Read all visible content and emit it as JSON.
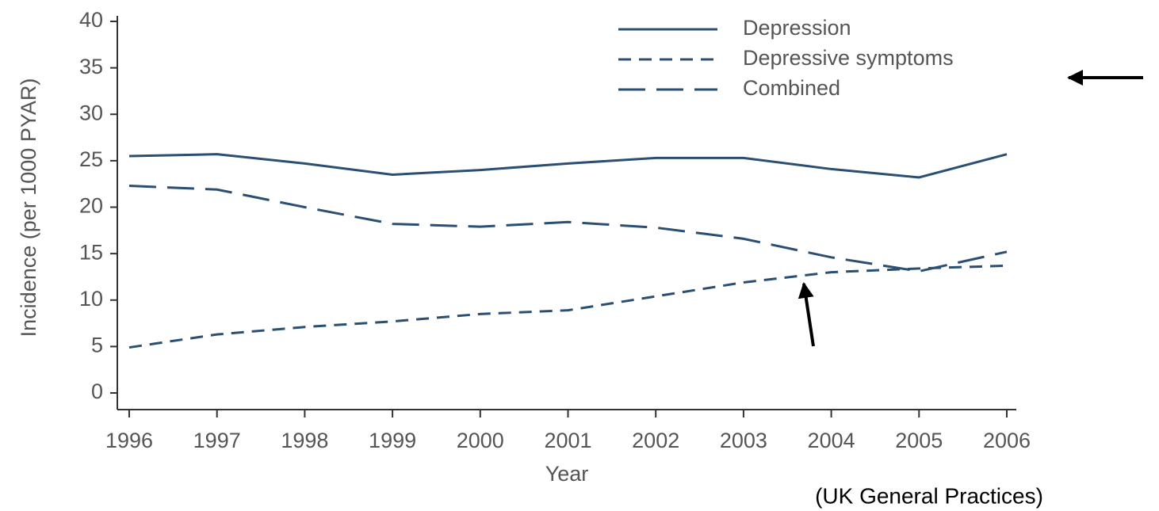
{
  "chart_data": {
    "type": "line",
    "x": [
      1996,
      1997,
      1998,
      1999,
      2000,
      2001,
      2002,
      2003,
      2004,
      2005,
      2006
    ],
    "xlim": [
      1996,
      2006
    ],
    "xticks": [
      1996,
      1997,
      1998,
      1999,
      2000,
      2001,
      2002,
      2003,
      2004,
      2005,
      2006
    ],
    "ylim": [
      0,
      40
    ],
    "yticks": [
      0,
      5,
      10,
      15,
      20,
      25,
      30,
      35,
      40
    ],
    "xlabel": "Year",
    "ylabel": "Incidence (per 1000 PYAR)",
    "annotation": "(UK General Practices)",
    "legend": "upper right",
    "series": [
      {
        "name": "Depression",
        "color": "#2b4f72",
        "dash": "solid",
        "values": [
          25.5,
          25.7,
          24.7,
          23.5,
          24.0,
          24.7,
          25.3,
          25.3,
          24.1,
          23.2,
          25.7
        ]
      },
      {
        "name": "Depressive symptoms",
        "color": "#2b4f72",
        "dash": "short",
        "values": [
          4.9,
          6.3,
          7.1,
          7.7,
          8.5,
          8.9,
          10.4,
          11.9,
          13.0,
          13.4,
          13.7
        ]
      },
      {
        "name": "Combined",
        "color": "#2b4f72",
        "dash": "long",
        "values": [
          22.3,
          21.9,
          20.0,
          18.2,
          17.9,
          18.4,
          17.8,
          16.6,
          14.6,
          13.1,
          15.2
        ]
      }
    ]
  }
}
